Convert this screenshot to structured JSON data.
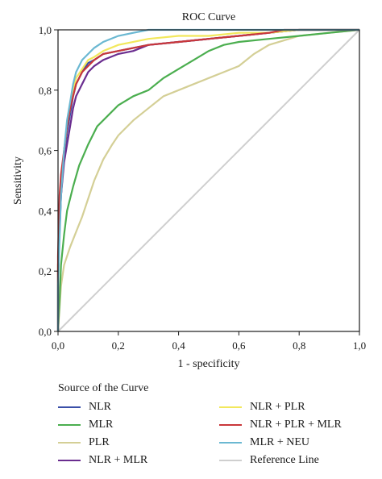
{
  "chart_data": {
    "type": "line",
    "title": "ROC Curve",
    "xlabel": "1 - specificity",
    "ylabel": "Sensitivity",
    "xlim": [
      0,
      1
    ],
    "ylim": [
      0,
      1
    ],
    "xticks": [
      "0,0",
      "0,2",
      "0,4",
      "0,6",
      "0,8",
      "1,0"
    ],
    "yticks": [
      "0,0",
      "0,2",
      "0,4",
      "0,6",
      "0,8",
      "1,0"
    ],
    "grid": false,
    "legend_title": "Source of the Curve",
    "legend_placement": "bottom",
    "series": [
      {
        "name": "NLR",
        "color": "#3a4fa8",
        "x": [
          0,
          0,
          0.01,
          0.02,
          0.03,
          0.04,
          0.05,
          0.06,
          0.08,
          0.1,
          0.12,
          0.15,
          0.2,
          0.3,
          0.4,
          0.5,
          0.6,
          0.7,
          0.8,
          1.0
        ],
        "y": [
          0,
          0.2,
          0.45,
          0.58,
          0.66,
          0.72,
          0.78,
          0.82,
          0.86,
          0.89,
          0.9,
          0.92,
          0.93,
          0.95,
          0.96,
          0.97,
          0.98,
          0.99,
          1.0,
          1.0
        ]
      },
      {
        "name": "MLR",
        "color": "#4bae4f",
        "x": [
          0,
          0.005,
          0.01,
          0.02,
          0.03,
          0.05,
          0.07,
          0.1,
          0.13,
          0.17,
          0.2,
          0.25,
          0.3,
          0.35,
          0.4,
          0.45,
          0.5,
          0.55,
          0.6,
          0.7,
          0.8,
          0.9,
          1.0
        ],
        "y": [
          0,
          0.1,
          0.22,
          0.32,
          0.4,
          0.48,
          0.55,
          0.62,
          0.68,
          0.72,
          0.75,
          0.78,
          0.8,
          0.84,
          0.87,
          0.9,
          0.93,
          0.95,
          0.96,
          0.97,
          0.98,
          0.99,
          1.0
        ]
      },
      {
        "name": "PLR",
        "color": "#d4cf96",
        "x": [
          0,
          0.01,
          0.02,
          0.04,
          0.06,
          0.08,
          0.1,
          0.12,
          0.15,
          0.18,
          0.2,
          0.25,
          0.3,
          0.35,
          0.4,
          0.45,
          0.5,
          0.55,
          0.6,
          0.65,
          0.7,
          0.8,
          0.9,
          1.0
        ],
        "y": [
          0,
          0.15,
          0.22,
          0.28,
          0.33,
          0.38,
          0.44,
          0.5,
          0.57,
          0.62,
          0.65,
          0.7,
          0.74,
          0.78,
          0.8,
          0.82,
          0.84,
          0.86,
          0.88,
          0.92,
          0.95,
          0.98,
          0.99,
          1.0
        ]
      },
      {
        "name": "NLR + MLR",
        "color": "#6a2d8f",
        "x": [
          0,
          0,
          0.01,
          0.02,
          0.03,
          0.04,
          0.05,
          0.06,
          0.08,
          0.1,
          0.12,
          0.15,
          0.2,
          0.25,
          0.3,
          0.4,
          0.5,
          0.6,
          0.7,
          0.8,
          1.0
        ],
        "y": [
          0,
          0.22,
          0.45,
          0.56,
          0.62,
          0.68,
          0.74,
          0.78,
          0.82,
          0.86,
          0.88,
          0.9,
          0.92,
          0.93,
          0.95,
          0.96,
          0.97,
          0.98,
          0.99,
          1.0,
          1.0
        ]
      },
      {
        "name": "NLR + PLR",
        "color": "#f2e85c",
        "x": [
          0,
          0,
          0.01,
          0.02,
          0.03,
          0.04,
          0.05,
          0.06,
          0.08,
          0.1,
          0.12,
          0.15,
          0.2,
          0.3,
          0.4,
          0.5,
          0.6,
          0.7,
          0.8,
          1.0
        ],
        "y": [
          0,
          0.22,
          0.48,
          0.6,
          0.68,
          0.74,
          0.8,
          0.84,
          0.87,
          0.9,
          0.91,
          0.93,
          0.95,
          0.97,
          0.98,
          0.98,
          0.99,
          0.99,
          1.0,
          1.0
        ]
      },
      {
        "name": "NLR + PLR + MLR",
        "color": "#c9373a",
        "x": [
          0,
          0,
          0.005,
          0.01,
          0.02,
          0.03,
          0.04,
          0.05,
          0.06,
          0.08,
          0.1,
          0.12,
          0.15,
          0.2,
          0.25,
          0.3,
          0.4,
          0.5,
          0.6,
          0.7,
          0.75,
          1.0
        ],
        "y": [
          0,
          0.25,
          0.45,
          0.52,
          0.6,
          0.68,
          0.74,
          0.78,
          0.82,
          0.86,
          0.88,
          0.9,
          0.92,
          0.93,
          0.94,
          0.95,
          0.96,
          0.97,
          0.98,
          0.99,
          1.0,
          1.0
        ]
      },
      {
        "name": "MLR + NEU",
        "color": "#6bb8d2",
        "x": [
          0,
          0,
          0.01,
          0.02,
          0.03,
          0.04,
          0.05,
          0.06,
          0.08,
          0.1,
          0.12,
          0.15,
          0.2,
          0.25,
          0.3,
          0.4,
          1.0
        ],
        "y": [
          0,
          0.15,
          0.45,
          0.6,
          0.7,
          0.76,
          0.82,
          0.86,
          0.9,
          0.92,
          0.94,
          0.96,
          0.98,
          0.99,
          1.0,
          1.0,
          1.0
        ]
      },
      {
        "name": "Reference Line",
        "color": "#cfcfcf",
        "x": [
          0,
          1
        ],
        "y": [
          0,
          1
        ]
      }
    ]
  }
}
